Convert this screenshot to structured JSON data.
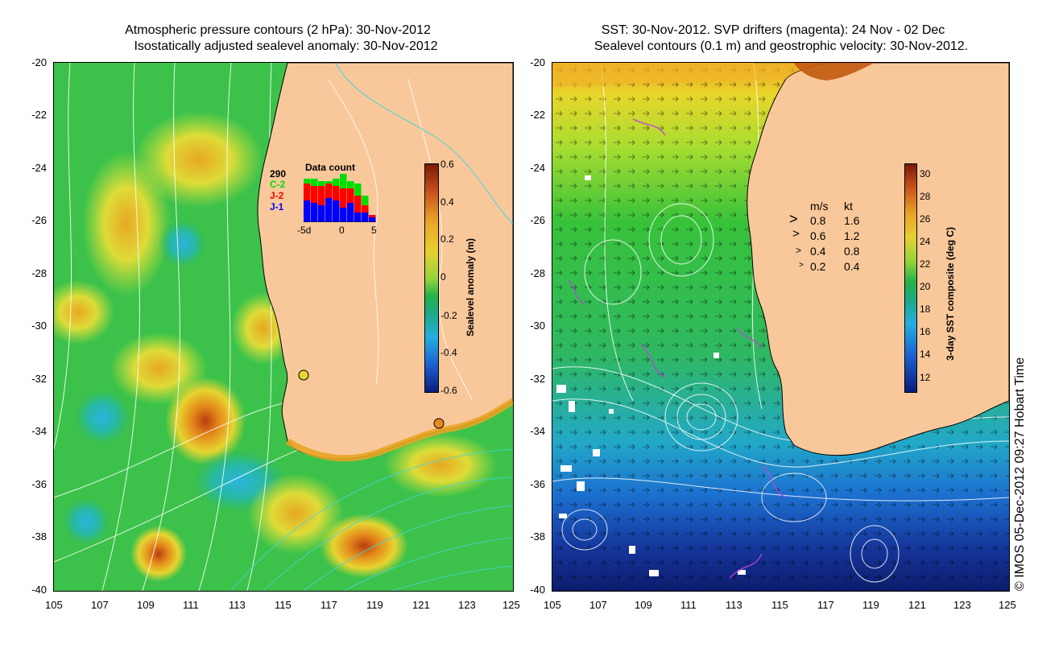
{
  "left_panel": {
    "title_line1": "Atmospheric pressure contours (2 hPa): 30-Nov-2012",
    "title_line2": "Isostatically adjusted sealevel anomaly: 30-Nov-2012",
    "x_ticks": [
      "105",
      "107",
      "109",
      "111",
      "113",
      "115",
      "117",
      "119",
      "121",
      "123",
      "125"
    ],
    "y_ticks": [
      "-20",
      "-22",
      "-24",
      "-26",
      "-28",
      "-30",
      "-32",
      "-34",
      "-36",
      "-38",
      "-40"
    ],
    "colorbar": {
      "label": "Sealevel anomaly (m)",
      "ticks": [
        "0.6",
        "0.4",
        "0.2",
        "0",
        "-0.2",
        "-0.4",
        "-0.6"
      ],
      "range": [
        -0.6,
        0.6
      ]
    },
    "data_count": {
      "title": "Data count",
      "max_label": "290",
      "series": [
        {
          "name": "C-2",
          "color": "#00dd00"
        },
        {
          "name": "J-2",
          "color": "#ff0000"
        },
        {
          "name": "J-1",
          "color": "#0000ff"
        }
      ],
      "x_ticks": [
        "-5d",
        "0",
        "5"
      ],
      "bars": [
        {
          "blue": 0.45,
          "red": 0.35,
          "green": 0.1
        },
        {
          "blue": 0.4,
          "red": 0.35,
          "green": 0.15
        },
        {
          "blue": 0.35,
          "red": 0.4,
          "green": 0.1
        },
        {
          "blue": 0.5,
          "red": 0.3,
          "green": 0.05
        },
        {
          "blue": 0.45,
          "red": 0.3,
          "green": 0.15
        },
        {
          "blue": 0.3,
          "red": 0.4,
          "green": 0.3
        },
        {
          "blue": 0.4,
          "red": 0.3,
          "green": 0.15
        },
        {
          "blue": 0.2,
          "red": 0.35,
          "green": 0.25
        },
        {
          "blue": 0.2,
          "red": 0.15,
          "green": 0.2
        },
        {
          "blue": 0.1,
          "red": 0.05,
          "green": 0.0
        }
      ]
    }
  },
  "right_panel": {
    "title_line1": "SST: 30-Nov-2012. SVP drifters (magenta): 24 Nov - 02 Dec",
    "title_line2": "Sealevel contours (0.1 m) and geostrophic velocity: 30-Nov-2012.",
    "x_ticks": [
      "105",
      "107",
      "109",
      "111",
      "113",
      "115",
      "117",
      "119",
      "121",
      "123",
      "125"
    ],
    "y_ticks": [
      "-20",
      "-22",
      "-24",
      "-26",
      "-28",
      "-30",
      "-32",
      "-34",
      "-36",
      "-38",
      "-40"
    ],
    "colorbar": {
      "label": "3-day SST composite (deg C)",
      "ticks": [
        "30",
        "28",
        "26",
        "24",
        "22",
        "20",
        "18",
        "16",
        "14",
        "12"
      ],
      "range": [
        11,
        31
      ]
    },
    "velocity_legend": {
      "header_ms": "m/s",
      "header_kt": "kt",
      "rows": [
        {
          "ms": "0.8",
          "kt": "1.6"
        },
        {
          "ms": "0.6",
          "kt": "1.2"
        },
        {
          "ms": "0.4",
          "kt": "0.8"
        },
        {
          "ms": "0.2",
          "kt": "0.4"
        }
      ]
    }
  },
  "credit": "© IMOS 05-Dec-2012 09:27 Hobart Time",
  "colors": {
    "land": "#f9c89a",
    "ocean_green": "#2fc23f",
    "ocean_yellow": "#dde03a",
    "ocean_orange": "#e38a1c",
    "ocean_blue": "#1aa9d6",
    "sst_warm": "#f0d020",
    "sst_cold": "#103590"
  }
}
